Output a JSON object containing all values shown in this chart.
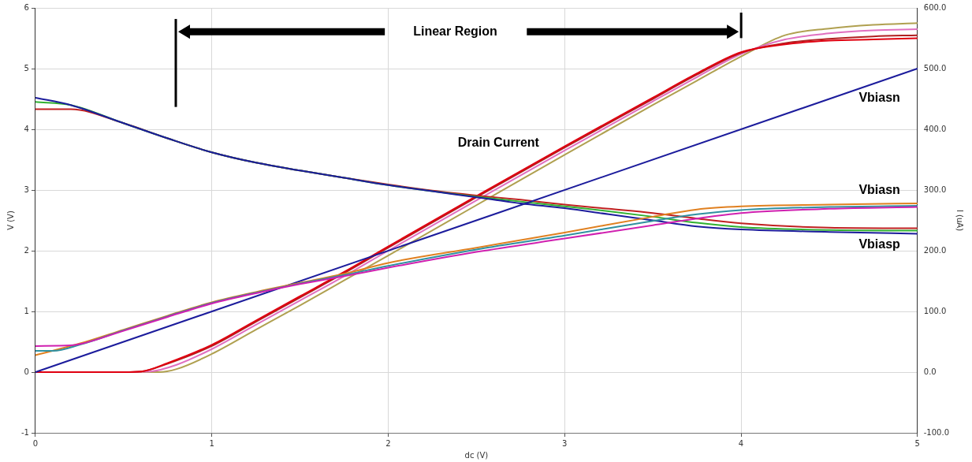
{
  "chart_data": {
    "type": "line",
    "xlabel": "dc (V)",
    "ylabel": "V (V)",
    "y2label": "I (uA)",
    "xlim": [
      0,
      5
    ],
    "xticks": [
      0,
      1,
      2,
      3,
      4,
      5
    ],
    "ylim": [
      -1,
      6
    ],
    "yticks": [
      -1,
      0,
      1,
      2,
      3,
      4,
      5,
      6
    ],
    "y2lim": [
      -100,
      600
    ],
    "y2ticks": [
      {
        "value": -100,
        "label": "-100.0"
      },
      {
        "value": 0,
        "label": "0.0"
      },
      {
        "value": 100,
        "label": "100.0"
      },
      {
        "value": 200,
        "label": "200.0"
      },
      {
        "value": 300,
        "label": "300.0"
      },
      {
        "value": 400,
        "label": "400.0"
      },
      {
        "value": 500,
        "label": "500.0"
      },
      {
        "value": 600,
        "label": "600.0"
      }
    ],
    "grid": true,
    "legend": false,
    "marker": "none",
    "line_style": "solid",
    "series": [
      {
        "color": "#b0a050",
        "axis": "y2",
        "x": [
          0,
          0.5,
          0.7,
          0.8,
          1,
          1.25,
          1.5,
          1.75,
          2,
          2.5,
          3,
          3.5,
          3.75,
          4,
          4.25,
          4.5,
          4.75,
          5
        ],
        "values": [
          0,
          0,
          0,
          5,
          30,
          70,
          110,
          151,
          192,
          275,
          358,
          440,
          480,
          520,
          555,
          566,
          572,
          575
        ]
      },
      {
        "color": "#e070c0",
        "axis": "y2",
        "x": [
          0,
          0.5,
          0.65,
          0.8,
          1,
          1.25,
          1.5,
          1.75,
          2,
          2.5,
          3,
          3.5,
          3.75,
          4,
          4.25,
          4.5,
          4.75,
          5
        ],
        "values": [
          0,
          0,
          1,
          12,
          38,
          78,
          118,
          158,
          200,
          283,
          365,
          446,
          486,
          524,
          548,
          558,
          563,
          565
        ]
      },
      {
        "color": "#b02020",
        "axis": "y2",
        "x": [
          0,
          0.5,
          0.6,
          0.75,
          1,
          1.25,
          1.5,
          1.75,
          2,
          2.5,
          3,
          3.5,
          3.75,
          4,
          4.25,
          4.5,
          4.75,
          5
        ],
        "values": [
          0,
          0,
          1,
          14,
          43,
          83,
          123,
          163,
          205,
          288,
          370,
          450,
          490,
          526,
          542,
          549,
          553,
          555
        ]
      },
      {
        "color": "#e00010",
        "axis": "y2",
        "x": [
          0,
          0.5,
          0.6,
          0.75,
          1,
          1.25,
          1.5,
          1.75,
          2,
          2.5,
          3,
          3.5,
          3.75,
          4,
          4.25,
          4.5,
          4.75,
          5
        ],
        "values": [
          0,
          0,
          1,
          15,
          45,
          85,
          125,
          165,
          207,
          290,
          372,
          452,
          492,
          527,
          540,
          546,
          548,
          550
        ]
      },
      {
        "color": "#c02020",
        "x": [
          0,
          0.2,
          0.5,
          0.75,
          1,
          1.25,
          1.5,
          1.75,
          2,
          2.25,
          2.5,
          2.75,
          3,
          3.25,
          3.5,
          3.75,
          4,
          4.5,
          5
        ],
        "values": [
          4.33,
          4.33,
          4.1,
          3.85,
          3.62,
          3.45,
          3.32,
          3.2,
          3.09,
          2.99,
          2.91,
          2.84,
          2.76,
          2.69,
          2.62,
          2.53,
          2.45,
          2.38,
          2.37
        ]
      },
      {
        "color": "#30b030",
        "x": [
          0,
          0.2,
          0.5,
          0.75,
          1,
          1.25,
          1.5,
          1.75,
          2,
          2.25,
          2.5,
          2.75,
          3,
          3.25,
          3.5,
          3.75,
          4,
          4.5,
          5
        ],
        "values": [
          4.45,
          4.4,
          4.1,
          3.85,
          3.62,
          3.45,
          3.32,
          3.2,
          3.08,
          2.98,
          2.89,
          2.81,
          2.73,
          2.65,
          2.56,
          2.46,
          2.39,
          2.34,
          2.33
        ]
      },
      {
        "color": "#1c1c9c",
        "x": [
          0,
          0.2,
          0.5,
          0.75,
          1,
          1.25,
          1.5,
          1.75,
          2,
          2.25,
          2.5,
          2.75,
          3,
          3.25,
          3.5,
          3.75,
          4,
          4.5,
          5
        ],
        "values": [
          4.52,
          4.4,
          4.1,
          3.85,
          3.62,
          3.45,
          3.32,
          3.2,
          3.08,
          2.98,
          2.88,
          2.78,
          2.7,
          2.6,
          2.5,
          2.4,
          2.35,
          2.31,
          2.28
        ]
      },
      {
        "color": "#1c1c9c",
        "x": [
          0,
          5
        ],
        "values": [
          0,
          5
        ]
      },
      {
        "color": "#e08020",
        "x": [
          0,
          0.25,
          0.5,
          0.75,
          1,
          1.25,
          1.5,
          1.75,
          2,
          2.5,
          3,
          3.5,
          3.75,
          4,
          4.5,
          5
        ],
        "values": [
          0.28,
          0.47,
          0.7,
          0.93,
          1.15,
          1.32,
          1.47,
          1.62,
          1.8,
          2.05,
          2.3,
          2.56,
          2.68,
          2.73,
          2.76,
          2.78
        ]
      },
      {
        "color": "#3090a0",
        "x": [
          0,
          0.1,
          0.25,
          0.5,
          0.75,
          1,
          1.25,
          1.5,
          1.75,
          2,
          2.5,
          3,
          3.5,
          3.75,
          4,
          4.5,
          5
        ],
        "values": [
          0.35,
          0.35,
          0.45,
          0.69,
          0.92,
          1.14,
          1.31,
          1.46,
          1.6,
          1.75,
          2.02,
          2.25,
          2.49,
          2.6,
          2.67,
          2.72,
          2.74
        ]
      },
      {
        "color": "#d020b0",
        "x": [
          0,
          0.2,
          0.25,
          0.5,
          0.75,
          1,
          1.25,
          1.5,
          1.75,
          2,
          2.5,
          3,
          3.5,
          3.75,
          4,
          4.5,
          5
        ],
        "values": [
          0.43,
          0.44,
          0.46,
          0.68,
          0.91,
          1.13,
          1.3,
          1.45,
          1.58,
          1.72,
          1.98,
          2.2,
          2.42,
          2.53,
          2.62,
          2.69,
          2.72
        ]
      }
    ],
    "annotations": [
      "Linear Region",
      "Drain Current",
      "Vbiasn",
      "Vbiasn",
      "Vbiasp"
    ]
  }
}
